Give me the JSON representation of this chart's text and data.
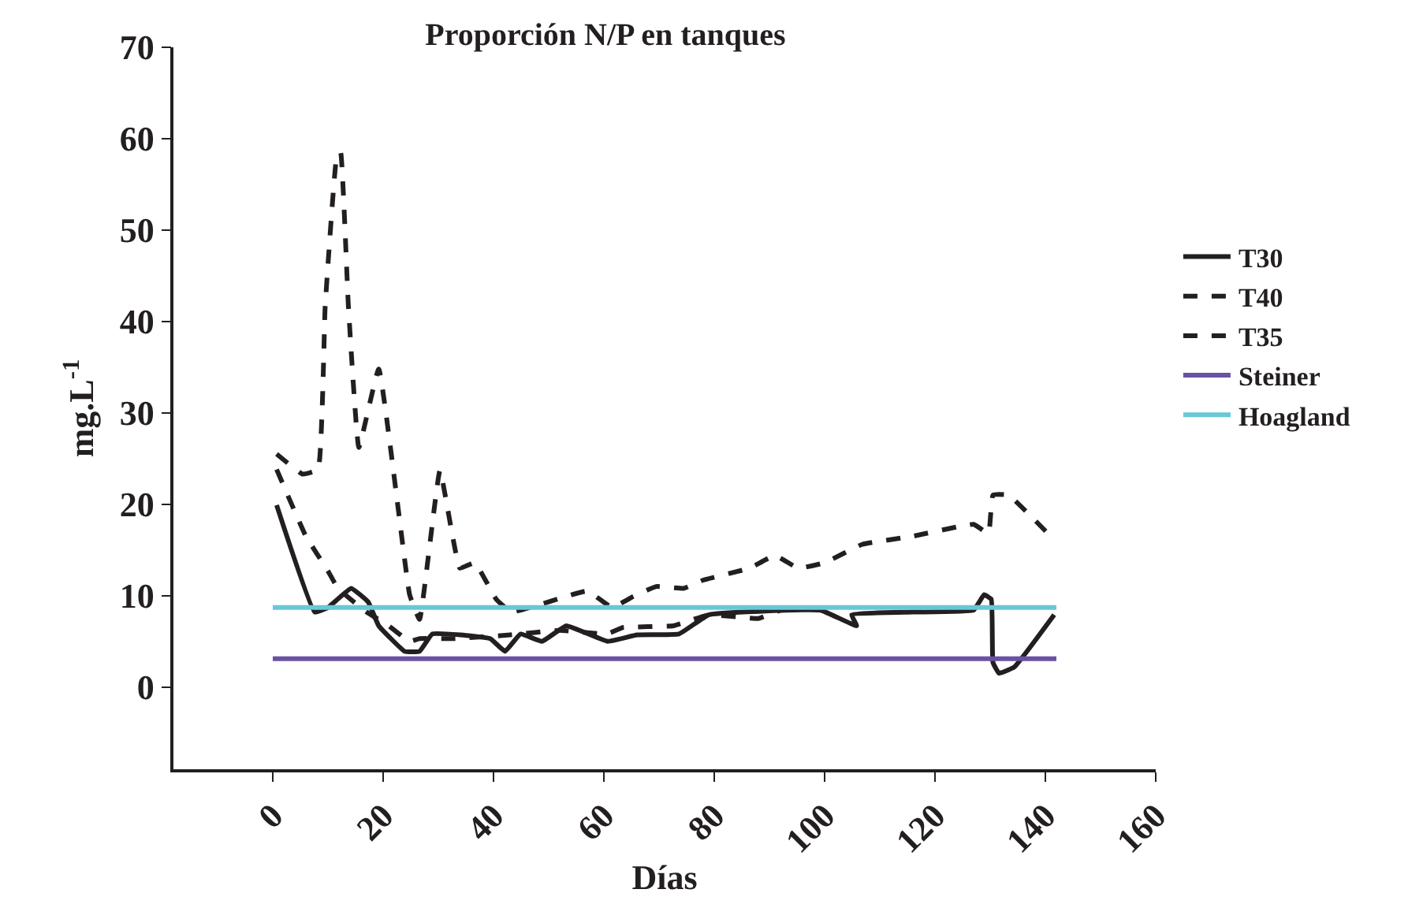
{
  "chart_data": {
    "type": "line",
    "title": "Proporción N/P en tanques",
    "xlabel": "Días",
    "ylabel": "mg.L$^{-1}$",
    "xlim": [
      -18,
      160
    ],
    "xticks": [
      0,
      20,
      40,
      60,
      80,
      100,
      120,
      140,
      160
    ],
    "ylim": [
      -9,
      70
    ],
    "yticks": [
      0,
      10,
      20,
      30,
      40,
      50,
      60,
      70
    ],
    "legend": "right",
    "marker": "none",
    "series": [
      {
        "name": "T30",
        "color": "#231f20",
        "line_style": "solid",
        "x": [
          0.7,
          7.6,
          10,
          14.2,
          17.3,
          19.2,
          23.9,
          26.6,
          28.9,
          34,
          39.4,
          42.1,
          44.9,
          48.8,
          53.2,
          60.7,
          66,
          73.6,
          79,
          93,
          99.3,
          105.8,
          104.9,
          116,
          127,
          128.9,
          130.2,
          130.5,
          131.6,
          134.4,
          141.6
        ],
        "values": [
          19.9,
          8.2,
          8.7,
          10.8,
          9.3,
          6.7,
          3.9,
          3.9,
          5.8,
          5.7,
          5.3,
          3.9,
          5.8,
          5,
          6.7,
          5,
          5.7,
          5.8,
          7.9,
          8.4,
          8.4,
          6.7,
          7.9,
          8.2,
          8.4,
          10.1,
          9.6,
          2.7,
          1.5,
          2.2,
          7.9
        ]
      },
      {
        "name": "T40",
        "color": "#231f20",
        "line_style": "dashed",
        "x": [
          0.7,
          6,
          10,
          11.8,
          17,
          21,
          24.8,
          26.6,
          33,
          43,
          52,
          60.6,
          63.4,
          72.6,
          79,
          88,
          92,
          100
        ],
        "values": [
          23.8,
          16.5,
          12.7,
          10.8,
          8.2,
          6.7,
          5,
          5.3,
          5.3,
          5.7,
          6.2,
          5.8,
          6.5,
          6.7,
          7.9,
          7.5,
          8.4,
          8.6
        ]
      },
      {
        "name": "T35",
        "color": "#231f20",
        "line_style": "dashed",
        "x": [
          0.7,
          5.4,
          8.2,
          9.5,
          11.5,
          12.3,
          13.7,
          15.6,
          19.2,
          24.8,
          26.6,
          30.3,
          33.9,
          36.6,
          40.5,
          43.2,
          48.8,
          57,
          61.5,
          65.3,
          69.5,
          74.5,
          78,
          86.4,
          91,
          95.2,
          100,
          106.8,
          116,
          127,
          129.7,
          130.5,
          133.3,
          141.6
        ],
        "values": [
          25.5,
          23.3,
          23.8,
          41.7,
          57.6,
          58.5,
          41.7,
          26.2,
          34.8,
          10.1,
          7.4,
          23.7,
          13,
          13.6,
          9.6,
          8.2,
          9.1,
          10.5,
          8.7,
          9.9,
          11,
          10.8,
          11.7,
          13,
          14.4,
          13,
          13.6,
          15.6,
          16.5,
          17.8,
          16.8,
          21,
          21,
          16.1
        ]
      },
      {
        "name": "Steiner",
        "color": "#6a51a3",
        "line_style": "solid",
        "x": [
          0,
          142
        ],
        "values": [
          3.1,
          3.1
        ]
      },
      {
        "name": "Hoagland",
        "color": "#67c8d8",
        "line_style": "solid",
        "x": [
          0,
          142
        ],
        "values": [
          8.7,
          8.7
        ]
      }
    ]
  }
}
